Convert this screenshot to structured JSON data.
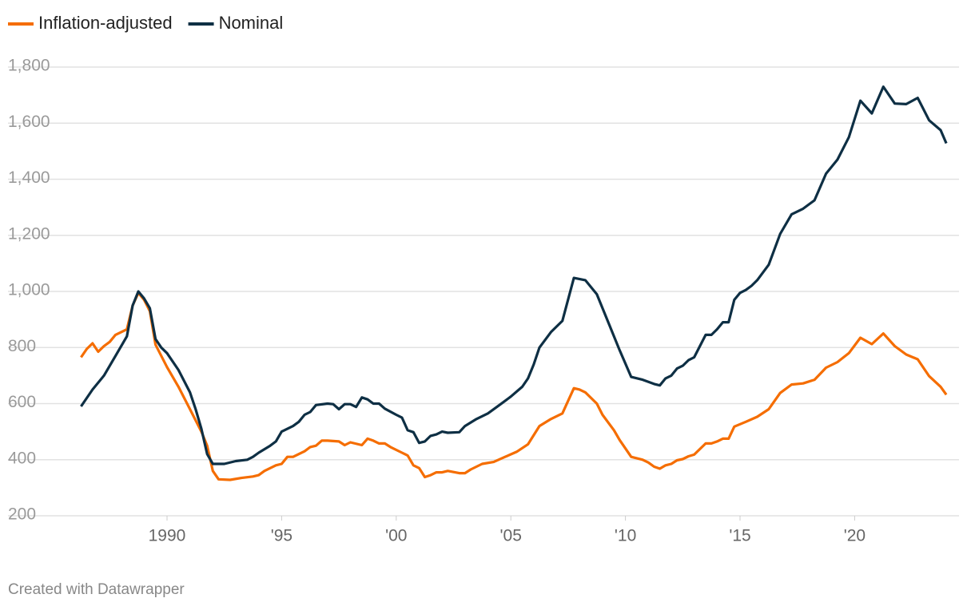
{
  "chart_data": {
    "type": "line",
    "footer": "Created with Datawrapper",
    "xlim": [
      1986.2,
      2024.1
    ],
    "ylim": [
      200,
      1800
    ],
    "yticks": [
      200,
      400,
      600,
      800,
      {
        "value": 1000,
        "label": "1,000"
      },
      {
        "value": 1200,
        "label": "1,200"
      },
      {
        "value": 1400,
        "label": "1,400"
      },
      {
        "value": 1600,
        "label": "1,600"
      },
      {
        "value": 1800,
        "label": "1,800"
      }
    ],
    "xticks": [
      1990,
      {
        "value": 1995,
        "label": "'95"
      },
      {
        "value": 2000,
        "label": "'00"
      },
      {
        "value": 2005,
        "label": "'05"
      },
      {
        "value": 2010,
        "label": "'10"
      },
      {
        "value": 2015,
        "label": "'15"
      },
      {
        "value": 2020,
        "label": "'20"
      }
    ],
    "grid": true,
    "series": [
      {
        "name": "Inflation-adjusted",
        "color": "#f56d00",
        "x": [
          1986.25,
          1986.5,
          1986.75,
          1987.0,
          1987.25,
          1987.5,
          1987.75,
          1988.25,
          1988.5,
          1988.75,
          1989.0,
          1989.25,
          1989.5,
          1990.0,
          1990.5,
          1991.0,
          1991.5,
          1991.75,
          1992.0,
          1992.25,
          1992.75,
          1993.25,
          1993.75,
          1994.0,
          1994.25,
          1994.75,
          1995.0,
          1995.25,
          1995.5,
          1995.75,
          1996.0,
          1996.25,
          1996.5,
          1996.75,
          1997.0,
          1997.5,
          1997.75,
          1998.0,
          1998.5,
          1998.75,
          1999.0,
          1999.25,
          1999.5,
          1999.75,
          2000.25,
          2000.5,
          2000.75,
          2001.0,
          2001.25,
          2001.5,
          2001.75,
          2002.0,
          2002.25,
          2002.75,
          2003.0,
          2003.25,
          2003.75,
          2004.25,
          2004.75,
          2005.25,
          2005.75,
          2006.25,
          2006.75,
          2007.25,
          2007.75,
          2008.0,
          2008.25,
          2008.75,
          2009.0,
          2009.5,
          2009.75,
          2010.25,
          2010.75,
          2011.0,
          2011.25,
          2011.5,
          2011.75,
          2012.0,
          2012.25,
          2012.5,
          2012.75,
          2013.0,
          2013.5,
          2013.75,
          2014.0,
          2014.25,
          2014.5,
          2014.75,
          2015.25,
          2015.75,
          2016.25,
          2016.75,
          2017.25,
          2017.75,
          2018.25,
          2018.75,
          2019.25,
          2019.75,
          2020.25,
          2020.75,
          2021.25,
          2021.75,
          2022.25,
          2022.75,
          2023.25,
          2023.75,
          2024.0
        ],
        "values": [
          765,
          795,
          815,
          785,
          805,
          820,
          845,
          865,
          950,
          995,
          970,
          930,
          810,
          730,
          660,
          580,
          500,
          450,
          360,
          330,
          328,
          335,
          340,
          345,
          360,
          380,
          385,
          410,
          410,
          420,
          430,
          445,
          450,
          468,
          468,
          465,
          452,
          462,
          452,
          475,
          468,
          458,
          458,
          445,
          425,
          415,
          380,
          370,
          338,
          345,
          355,
          355,
          360,
          352,
          352,
          365,
          385,
          392,
          410,
          428,
          455,
          520,
          545,
          565,
          655,
          650,
          640,
          600,
          560,
          505,
          470,
          410,
          400,
          390,
          375,
          368,
          380,
          385,
          398,
          402,
          412,
          418,
          458,
          458,
          465,
          475,
          475,
          518,
          535,
          553,
          580,
          638,
          668,
          672,
          685,
          728,
          748,
          780,
          835,
          812,
          850,
          805,
          775,
          758,
          698,
          660,
          632
        ]
      },
      {
        "name": "Nominal",
        "color": "#0e2f44",
        "x": [
          1986.25,
          1986.75,
          1987.25,
          1987.75,
          1988.25,
          1988.5,
          1988.75,
          1989.0,
          1989.25,
          1989.5,
          1989.75,
          1990.0,
          1990.5,
          1991.0,
          1991.25,
          1991.5,
          1991.75,
          1992.0,
          1992.5,
          1993.0,
          1993.5,
          1993.75,
          1994.0,
          1994.5,
          1994.75,
          1995.0,
          1995.5,
          1995.75,
          1996.0,
          1996.25,
          1996.5,
          1997.0,
          1997.25,
          1997.5,
          1997.75,
          1998.0,
          1998.25,
          1998.5,
          1998.75,
          1999.0,
          1999.25,
          1999.5,
          2000.0,
          2000.25,
          2000.5,
          2000.75,
          2001.0,
          2001.25,
          2001.5,
          2001.75,
          2002.0,
          2002.25,
          2002.75,
          2003.0,
          2003.5,
          2004.0,
          2004.5,
          2005.0,
          2005.5,
          2005.75,
          2006.0,
          2006.25,
          2006.75,
          2007.25,
          2007.75,
          2008.25,
          2008.75,
          2009.25,
          2009.75,
          2010.25,
          2010.75,
          2011.25,
          2011.5,
          2011.75,
          2012.0,
          2012.25,
          2012.5,
          2012.75,
          2013.0,
          2013.5,
          2013.75,
          2014.0,
          2014.25,
          2014.5,
          2014.75,
          2015.0,
          2015.25,
          2015.5,
          2015.75,
          2016.25,
          2016.75,
          2017.25,
          2017.75,
          2018.25,
          2018.75,
          2019.25,
          2019.75,
          2020.25,
          2020.75,
          2021.25,
          2021.75,
          2022.25,
          2022.75,
          2023.25,
          2023.75,
          2024.0
        ],
        "values": [
          590,
          650,
          700,
          770,
          840,
          950,
          1000,
          975,
          940,
          830,
          800,
          780,
          720,
          640,
          580,
          510,
          420,
          385,
          385,
          395,
          400,
          410,
          425,
          450,
          465,
          500,
          520,
          535,
          560,
          570,
          595,
          600,
          598,
          580,
          598,
          598,
          588,
          622,
          615,
          600,
          600,
          582,
          560,
          550,
          505,
          498,
          460,
          465,
          485,
          490,
          500,
          496,
          498,
          520,
          545,
          565,
          595,
          625,
          660,
          690,
          740,
          800,
          855,
          895,
          1048,
          1040,
          990,
          890,
          790,
          695,
          685,
          670,
          665,
          690,
          700,
          725,
          735,
          755,
          765,
          845,
          845,
          865,
          890,
          890,
          970,
          995,
          1005,
          1020,
          1040,
          1095,
          1205,
          1275,
          1295,
          1325,
          1420,
          1470,
          1550,
          1680,
          1635,
          1730,
          1670,
          1668,
          1690,
          1610,
          1575,
          1528
        ]
      }
    ]
  }
}
